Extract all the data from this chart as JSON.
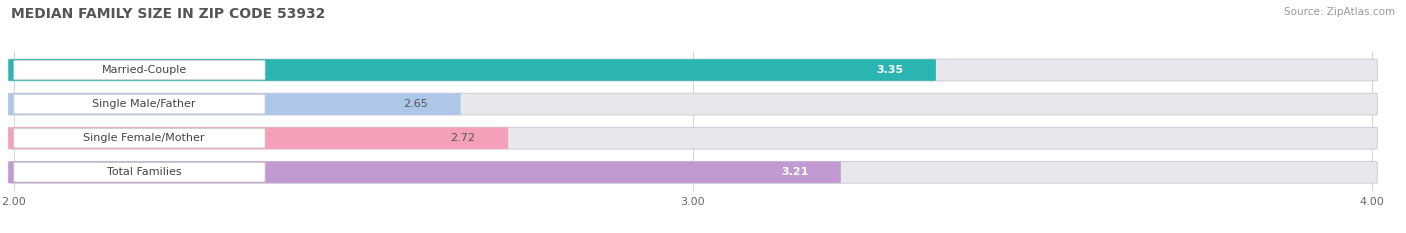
{
  "title": "MEDIAN FAMILY SIZE IN ZIP CODE 53932",
  "source": "Source: ZipAtlas.com",
  "categories": [
    "Married-Couple",
    "Single Male/Father",
    "Single Female/Mother",
    "Total Families"
  ],
  "values": [
    3.35,
    2.65,
    2.72,
    3.21
  ],
  "bar_colors": [
    "#2ab5b2",
    "#aec6e8",
    "#f4a0b8",
    "#c09ad0"
  ],
  "value_colors": [
    "#ffffff",
    "#555555",
    "#555555",
    "#ffffff"
  ],
  "x_min": 2.0,
  "x_max": 4.0,
  "x_ticks": [
    2.0,
    3.0,
    4.0
  ],
  "x_tick_labels": [
    "2.00",
    "3.00",
    "4.00"
  ],
  "bar_height": 0.62,
  "figsize": [
    14.06,
    2.33
  ],
  "dpi": 100,
  "title_fontsize": 10,
  "label_fontsize": 8,
  "value_fontsize": 8,
  "tick_fontsize": 8,
  "source_fontsize": 7.5,
  "background_color": "#ffffff",
  "bar_bg_color": "#e8e8ec"
}
